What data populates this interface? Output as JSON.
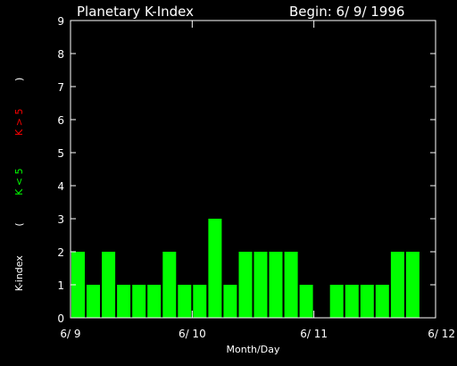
{
  "header": {
    "title": "Planetary K-Index",
    "begin": "Begin: 6/ 9/ 1996"
  },
  "colors": {
    "background": "#000000",
    "axes": "#ffffff",
    "low": "#00ff00",
    "high": "#ff0000"
  },
  "chart_data": {
    "type": "bar",
    "title": "Planetary K-Index",
    "xlabel": "Month/Day",
    "ylabel": "K-index",
    "ylabel_low": "K < 5",
    "ylabel_high": "K > 5",
    "ylim": [
      0,
      9
    ],
    "yticks": [
      0,
      1,
      2,
      3,
      4,
      5,
      6,
      7,
      8,
      9
    ],
    "xlim": [
      0,
      24
    ],
    "xticks": [
      {
        "x": 0,
        "label": "6/ 9"
      },
      {
        "x": 8,
        "label": "6/ 10"
      },
      {
        "x": 16,
        "label": "6/ 11"
      },
      {
        "x": 24,
        "label": "6/ 12"
      }
    ],
    "bar_interval_hours": 3,
    "values": [
      2,
      1,
      2,
      1,
      1,
      1,
      2,
      1,
      1,
      3,
      1,
      2,
      2,
      2,
      2,
      1,
      0,
      1,
      1,
      1,
      1,
      2,
      2,
      0
    ]
  }
}
